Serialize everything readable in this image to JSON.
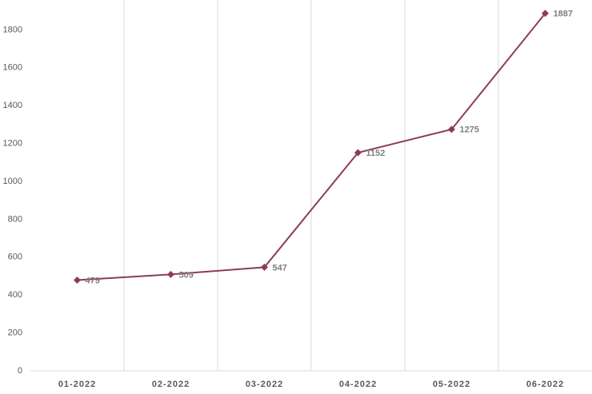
{
  "chart_data": {
    "type": "line",
    "categories": [
      "01-2022",
      "02-2022",
      "03-2022",
      "04-2022",
      "05-2022",
      "06-2022"
    ],
    "series": [
      {
        "color": "#8e3b55",
        "values": [
          479,
          509,
          547,
          1152,
          1275,
          1887
        ]
      }
    ],
    "ylim": [
      0,
      2000
    ],
    "yticks": [
      0,
      200,
      400,
      600,
      800,
      1000,
      1200,
      1400,
      1600,
      1800
    ],
    "data_labels": true
  }
}
